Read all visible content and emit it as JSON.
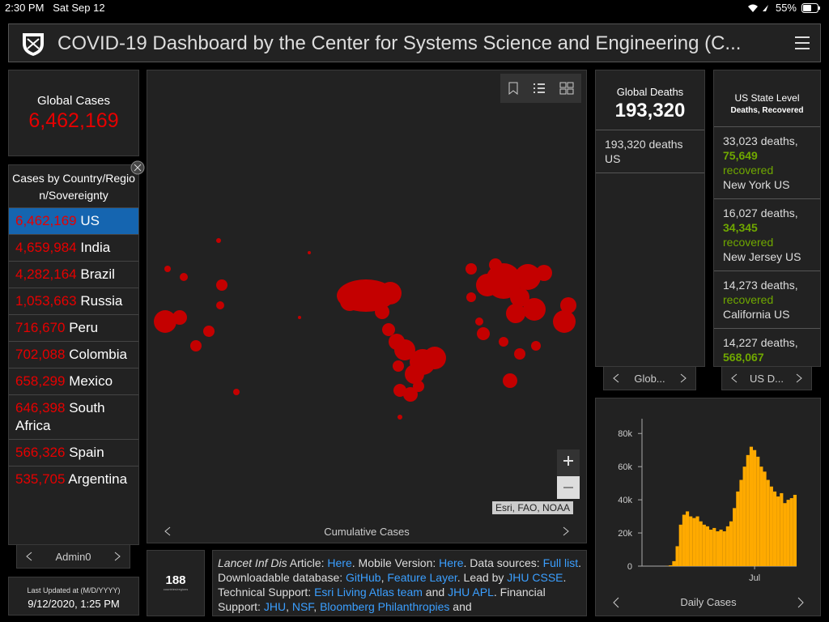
{
  "status_bar": {
    "time": "2:30 PM",
    "date": "Sat Sep 12",
    "battery": "55%"
  },
  "header": {
    "title": "COVID-19 Dashboard by the Center for Systems Science and Engineering (C..."
  },
  "global_cases": {
    "label": "Global Cases",
    "value": "6,462,169"
  },
  "country_panel": {
    "title": "Cases by Country/Region/Sovereignty",
    "rows": [
      {
        "count": "6,462,169",
        "name": "US"
      },
      {
        "count": "4,659,984",
        "name": "India"
      },
      {
        "count": "4,282,164",
        "name": "Brazil"
      },
      {
        "count": "1,053,663",
        "name": "Russia"
      },
      {
        "count": "716,670",
        "name": "Peru"
      },
      {
        "count": "702,088",
        "name": "Colombia"
      },
      {
        "count": "658,299",
        "name": "Mexico"
      },
      {
        "count": "646,398",
        "name": "South Africa"
      },
      {
        "count": "566,326",
        "name": "Spain"
      },
      {
        "count": "535,705",
        "name": "Argentina"
      }
    ],
    "footer": "Admin0"
  },
  "map": {
    "footer": "Cumulative Cases",
    "attribution": "Esri, FAO, NOAA"
  },
  "count_box": {
    "value": "188",
    "label": "countries/regions"
  },
  "info_text": [
    "Lancet Inf Dis",
    " Article: ",
    "Here",
    ". Mobile Version: ",
    "Here",
    ". Data sources: ",
    "Full list",
    ". Downloadable database: ",
    "GitHub",
    ", ",
    "Feature Layer",
    ". Lead by ",
    "JHU CSSE",
    ". Technical Support: ",
    "Esri Living Atlas team",
    " and ",
    "JHU APL",
    ". Financial Support: ",
    "JHU",
    ", ",
    "NSF",
    ", ",
    "Bloomberg Philanthropies",
    " and"
  ],
  "last_updated": {
    "label": "Last Updated at (M/D/YYYY)",
    "value": "9/12/2020, 1:25 PM"
  },
  "global_deaths": {
    "label": "Global Deaths",
    "value": "193,320",
    "rows": [
      "193,320 deaths US"
    ],
    "footer": "Glob..."
  },
  "us_state": {
    "title": "US State Level",
    "subtitle": "Deaths, Recovered",
    "rows": [
      {
        "deaths": "33,023",
        "deaths_label": "deaths,",
        "recovered": "75,649",
        "recovered_label": "recovered",
        "place": "New York US"
      },
      {
        "deaths": "16,027",
        "deaths_label": "deaths,",
        "recovered": "34,345",
        "recovered_label": "recovered",
        "place": "New Jersey US"
      },
      {
        "deaths": "14,273",
        "deaths_label": "deaths,",
        "recovered_label": "recovered",
        "place": "California US"
      },
      {
        "deaths": "14,227",
        "deaths_label": "deaths,",
        "recovered": "568,067",
        "recovered_label": "recovered"
      }
    ],
    "footer": "US D..."
  },
  "chart_data": {
    "type": "bar",
    "footer": "Daily Cases",
    "color": "#ffaa00",
    "categories": [
      null,
      null,
      null,
      null,
      null,
      null,
      null,
      null,
      null,
      null,
      null,
      null,
      null,
      null,
      null,
      null,
      null,
      null,
      null,
      null,
      null,
      null,
      null,
      null,
      null,
      null,
      null,
      null,
      null,
      null,
      null,
      null,
      null,
      "Jul",
      null,
      null,
      null,
      null,
      null,
      null,
      null,
      null,
      null,
      null,
      null,
      null
    ],
    "values": [
      0,
      0,
      0,
      0,
      0,
      0,
      0,
      100,
      500,
      3000,
      12000,
      25000,
      31000,
      33000,
      30000,
      29000,
      30000,
      27000,
      25000,
      24000,
      22000,
      23000,
      21000,
      22000,
      21000,
      24000,
      27000,
      35000,
      45000,
      52000,
      60000,
      67000,
      72000,
      70000,
      66000,
      60000,
      57000,
      52000,
      48000,
      45000,
      42000,
      44000,
      38000,
      40000,
      41000,
      43000
    ],
    "ylim": [
      0,
      85000
    ],
    "yticks": [
      0,
      {
        "value": 20000,
        "label": "20k"
      },
      {
        "value": 40000,
        "label": "40k"
      },
      {
        "value": 60000,
        "label": "60k"
      },
      {
        "value": 80000,
        "label": "80k"
      }
    ]
  }
}
